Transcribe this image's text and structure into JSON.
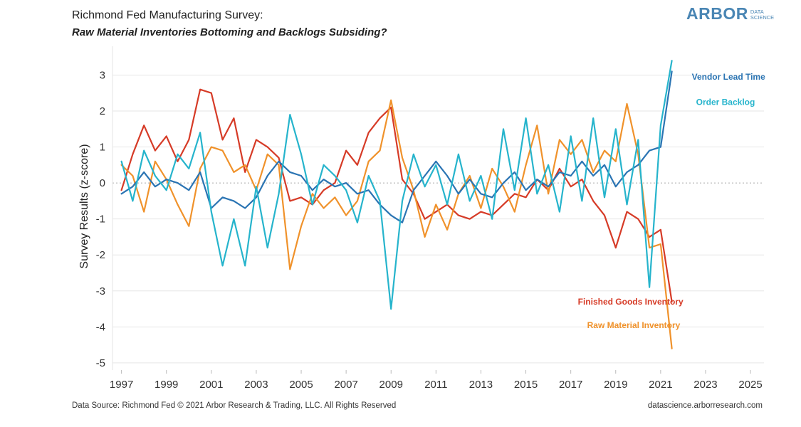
{
  "header": {
    "title": "Richmond Fed Manufacturing Survey:",
    "subtitle": "Raw Material Inventories Bottoming and Backlogs Subsiding?"
  },
  "logo": {
    "main": "ARBOR",
    "sub_line1": "DATA",
    "sub_line2": "SCIENCE"
  },
  "footer": {
    "source": "Data Source: Richmond Fed © 2021 Arbor Research & Trading, LLC. All Rights Reserved",
    "site": "datascience.arborresearch.com"
  },
  "chart_data": {
    "type": "line",
    "title": "Richmond Fed Manufacturing Survey:",
    "subtitle": "Raw Material Inventories Bottoming and Backlogs Subsiding?",
    "xlabel": "",
    "ylabel": "Survey Results (z-score)",
    "xlim": [
      1996.6,
      2025.6
    ],
    "ylim": [
      -5.2,
      3.8
    ],
    "x_ticks": [
      "1997",
      "1999",
      "2001",
      "2003",
      "2005",
      "2007",
      "2009",
      "2011",
      "2013",
      "2015",
      "2017",
      "2019",
      "2021",
      "2023",
      "2025"
    ],
    "y_ticks": [
      "3",
      "2",
      "1",
      "0",
      "-1",
      "-2",
      "-3",
      "-4",
      "-5"
    ],
    "grid": "horizontal",
    "zero_line": "dotted",
    "legend": "inline labels at right end of series",
    "series": [
      {
        "name": "Finished Goods Inventory",
        "color": "#d63b27",
        "x": [
          1997.0,
          1997.5,
          1998.0,
          1998.5,
          1999.0,
          1999.5,
          2000.0,
          2000.5,
          2001.0,
          2001.5,
          2002.0,
          2002.5,
          2003.0,
          2003.5,
          2004.0,
          2004.5,
          2005.0,
          2005.5,
          2006.0,
          2006.5,
          2007.0,
          2007.5,
          2008.0,
          2008.5,
          2009.0,
          2009.5,
          2010.0,
          2010.5,
          2011.0,
          2011.5,
          2012.0,
          2012.5,
          2013.0,
          2013.5,
          2014.0,
          2014.5,
          2015.0,
          2015.5,
          2016.0,
          2016.5,
          2017.0,
          2017.5,
          2018.0,
          2018.5,
          2019.0,
          2019.5,
          2020.0,
          2020.5,
          2021.0,
          2021.5
        ],
        "values": [
          -0.2,
          0.8,
          1.6,
          0.9,
          1.3,
          0.6,
          1.2,
          2.6,
          2.5,
          1.2,
          1.8,
          0.3,
          1.2,
          1.0,
          0.7,
          -0.5,
          -0.4,
          -0.6,
          -0.2,
          0.0,
          0.9,
          0.5,
          1.4,
          1.8,
          2.1,
          0.1,
          -0.3,
          -1.0,
          -0.8,
          -0.6,
          -0.9,
          -1.0,
          -0.8,
          -0.9,
          -0.6,
          -0.3,
          -0.4,
          0.1,
          -0.2,
          0.4,
          -0.1,
          0.1,
          -0.5,
          -0.9,
          -1.8,
          -0.8,
          -1.0,
          -1.5,
          -1.3,
          -3.3
        ]
      },
      {
        "name": "Raw Material Inventory",
        "color": "#f0922b",
        "x": [
          1997.0,
          1997.5,
          1998.0,
          1998.5,
          1999.0,
          1999.5,
          2000.0,
          2000.5,
          2001.0,
          2001.5,
          2002.0,
          2002.5,
          2003.0,
          2003.5,
          2004.0,
          2004.5,
          2005.0,
          2005.5,
          2006.0,
          2006.5,
          2007.0,
          2007.5,
          2008.0,
          2008.5,
          2009.0,
          2009.5,
          2010.0,
          2010.5,
          2011.0,
          2011.5,
          2012.0,
          2012.5,
          2013.0,
          2013.5,
          2014.0,
          2014.5,
          2015.0,
          2015.5,
          2016.0,
          2016.5,
          2017.0,
          2017.5,
          2018.0,
          2018.5,
          2019.0,
          2019.5,
          2020.0,
          2020.5,
          2021.0,
          2021.5
        ],
        "values": [
          0.5,
          0.2,
          -0.8,
          0.6,
          0.1,
          -0.6,
          -1.2,
          0.4,
          1.0,
          0.9,
          0.3,
          0.5,
          -0.2,
          0.8,
          0.5,
          -2.4,
          -1.2,
          -0.3,
          -0.7,
          -0.4,
          -0.9,
          -0.5,
          0.6,
          0.9,
          2.3,
          0.7,
          -0.2,
          -1.5,
          -0.6,
          -1.3,
          -0.3,
          0.2,
          -0.7,
          0.4,
          -0.1,
          -0.8,
          0.5,
          1.6,
          -0.3,
          1.2,
          0.8,
          1.2,
          0.3,
          0.9,
          0.6,
          2.2,
          0.8,
          -1.8,
          -1.7,
          -4.6
        ]
      },
      {
        "name": "Vendor Lead Time",
        "color": "#2a74b3",
        "x": [
          1997.0,
          1997.5,
          1998.0,
          1998.5,
          1999.0,
          1999.5,
          2000.0,
          2000.5,
          2001.0,
          2001.5,
          2002.0,
          2002.5,
          2003.0,
          2003.5,
          2004.0,
          2004.5,
          2005.0,
          2005.5,
          2006.0,
          2006.5,
          2007.0,
          2007.5,
          2008.0,
          2008.5,
          2009.0,
          2009.5,
          2010.0,
          2010.5,
          2011.0,
          2011.5,
          2012.0,
          2012.5,
          2013.0,
          2013.5,
          2014.0,
          2014.5,
          2015.0,
          2015.5,
          2016.0,
          2016.5,
          2017.0,
          2017.5,
          2018.0,
          2018.5,
          2019.0,
          2019.5,
          2020.0,
          2020.5,
          2021.0,
          2021.5
        ],
        "values": [
          -0.3,
          -0.1,
          0.3,
          -0.1,
          0.1,
          0.0,
          -0.2,
          0.3,
          -0.7,
          -0.4,
          -0.5,
          -0.7,
          -0.4,
          0.2,
          0.6,
          0.3,
          0.2,
          -0.2,
          0.1,
          -0.1,
          0.0,
          -0.3,
          -0.2,
          -0.6,
          -0.9,
          -1.1,
          -0.2,
          0.2,
          0.6,
          0.2,
          -0.3,
          0.1,
          -0.3,
          -0.4,
          0.0,
          0.3,
          -0.2,
          0.1,
          -0.1,
          0.3,
          0.2,
          0.6,
          0.2,
          0.5,
          -0.1,
          0.3,
          0.5,
          0.9,
          1.0,
          3.1
        ]
      },
      {
        "name": "Order Backlog",
        "color": "#26b4cc",
        "x": [
          1997.0,
          1997.5,
          1998.0,
          1998.5,
          1999.0,
          1999.5,
          2000.0,
          2000.5,
          2001.0,
          2001.5,
          2002.0,
          2002.5,
          2003.0,
          2003.5,
          2004.0,
          2004.5,
          2005.0,
          2005.5,
          2006.0,
          2006.5,
          2007.0,
          2007.5,
          2008.0,
          2008.5,
          2009.0,
          2009.5,
          2010.0,
          2010.5,
          2011.0,
          2011.5,
          2012.0,
          2012.5,
          2013.0,
          2013.5,
          2014.0,
          2014.5,
          2015.0,
          2015.5,
          2016.0,
          2016.5,
          2017.0,
          2017.5,
          2018.0,
          2018.5,
          2019.0,
          2019.5,
          2020.0,
          2020.5,
          2021.0,
          2021.5
        ],
        "values": [
          0.6,
          -0.5,
          0.9,
          0.2,
          -0.2,
          0.8,
          0.4,
          1.4,
          -0.8,
          -2.3,
          -1.0,
          -2.3,
          -0.1,
          -1.8,
          -0.3,
          1.9,
          0.8,
          -0.6,
          0.5,
          0.2,
          -0.2,
          -1.1,
          0.2,
          -0.5,
          -3.5,
          -0.5,
          0.8,
          -0.1,
          0.5,
          -0.6,
          0.8,
          -0.5,
          0.2,
          -1.0,
          1.5,
          -0.2,
          1.8,
          -0.3,
          0.5,
          -0.8,
          1.3,
          -0.5,
          1.8,
          -0.4,
          1.5,
          -0.6,
          1.2,
          -2.9,
          1.6,
          3.4
        ]
      }
    ]
  }
}
